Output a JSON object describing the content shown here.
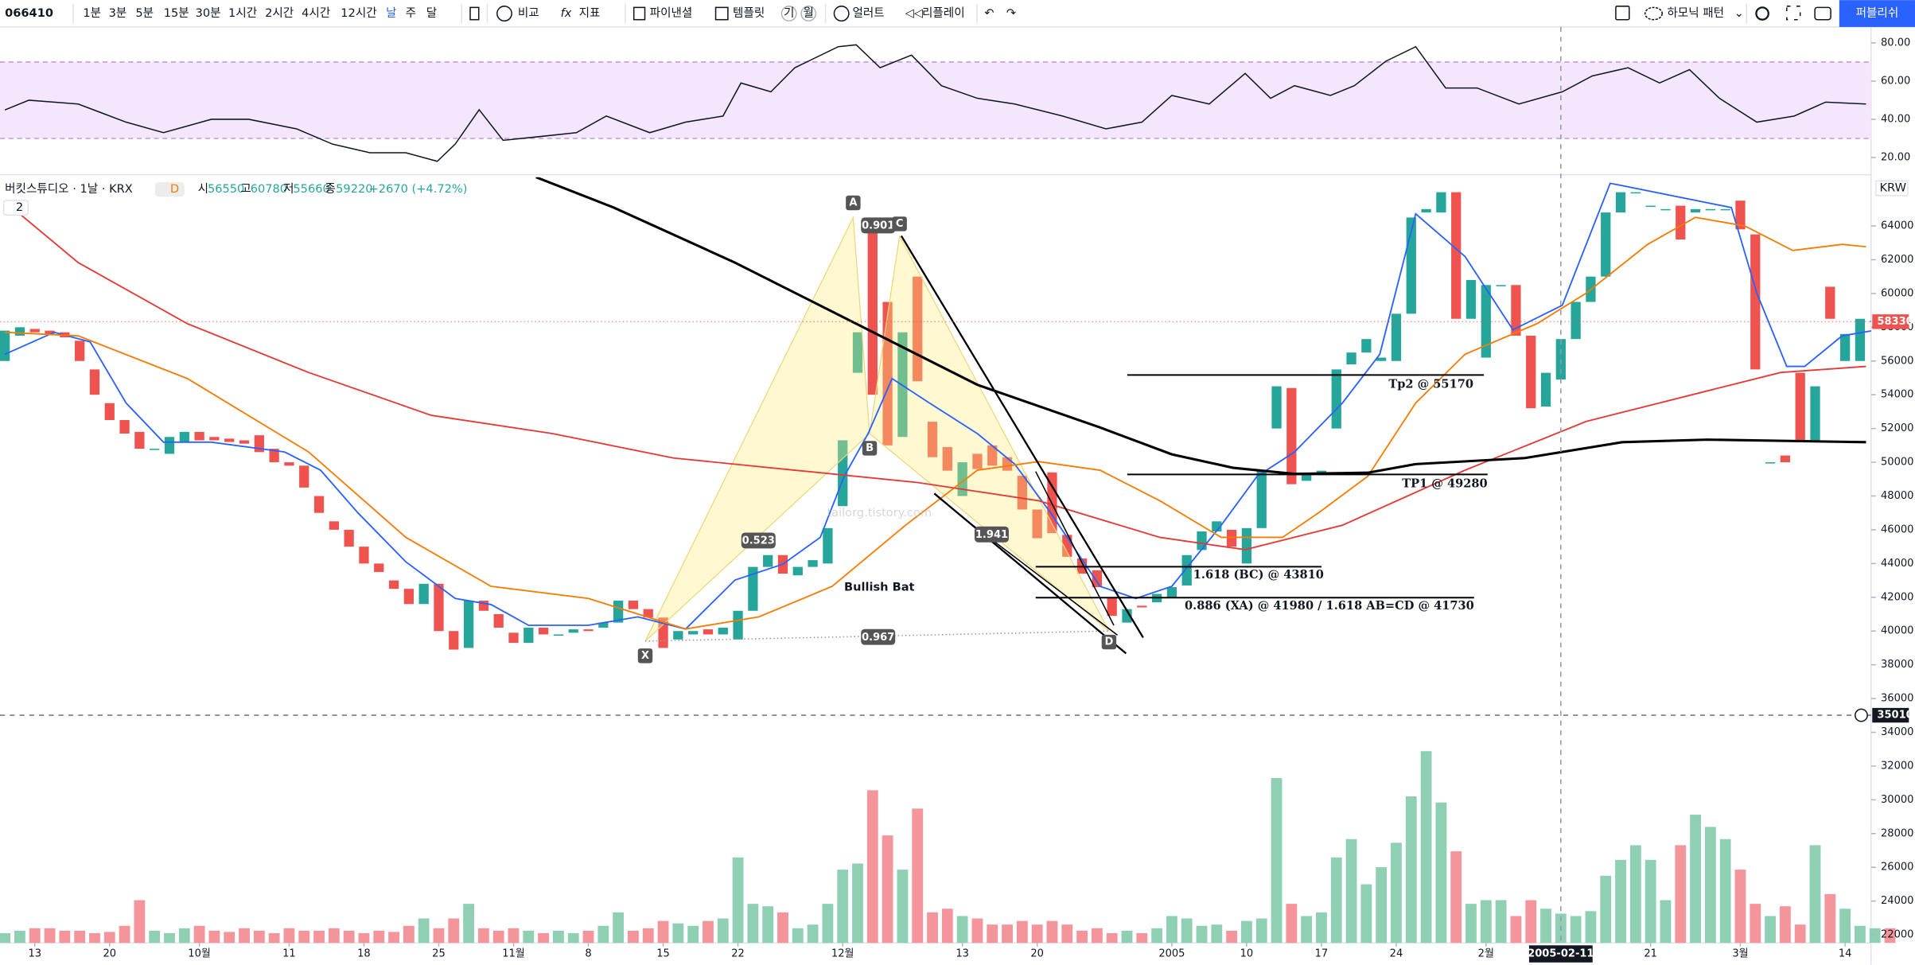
{
  "toolbar": {
    "symbol": "066410",
    "intervals": [
      "1분",
      "3분",
      "5분",
      "15분",
      "30분",
      "1시간",
      "2시간",
      "4시간",
      "12시간",
      "날",
      "주",
      "달"
    ],
    "compare": "비교",
    "indicators": "지표",
    "financials": "파이낸셜",
    "templates": "템플릿",
    "template_buttons": [
      "기",
      "월"
    ],
    "alert": "얼러트",
    "replay": "리플레이",
    "harmonic": "하모닉 패턴",
    "publish": "퍼블리쉬"
  },
  "legend": {
    "title": "버킷스튜디오 · 1날 · KRX",
    "badge": "D",
    "open_label": "시",
    "open": 56550,
    "high_label": "고",
    "high": 60780,
    "low_label": "저",
    "low": 55660,
    "close_label": "종",
    "close": 59220,
    "change": "+2670 (+4.72%)",
    "collapsed": "2",
    "currency": "KRW"
  },
  "chart": {
    "colors": {
      "up": "#26a69a",
      "down": "#ef5350",
      "vol_up": "#8fd0b5",
      "vol_down": "#f4959b"
    },
    "ylim": [
      20220,
      66890
    ],
    "yticks": [
      22000,
      24000,
      26000,
      28000,
      30000,
      32000,
      34000,
      36000,
      38000,
      40000,
      42000,
      44000,
      46000,
      48000,
      50000,
      52000,
      54000,
      56000,
      58000,
      60000,
      62000,
      64000
    ],
    "x_labels": [
      {
        "value": 2,
        "label": "13"
      },
      {
        "value": 7,
        "label": "20"
      },
      {
        "value": 13,
        "label": "10월"
      },
      {
        "value": 19,
        "label": "11"
      },
      {
        "value": 24,
        "label": "18"
      },
      {
        "value": 29,
        "label": "25"
      },
      {
        "value": 34,
        "label": "11월"
      },
      {
        "value": 39,
        "label": "8"
      },
      {
        "value": 44,
        "label": "15"
      },
      {
        "value": 49,
        "label": "22"
      },
      {
        "value": 56,
        "label": "12월"
      },
      {
        "value": 64,
        "label": "13"
      },
      {
        "value": 69,
        "label": "20"
      },
      {
        "value": 78,
        "label": "2005"
      },
      {
        "value": 83,
        "label": "10"
      },
      {
        "value": 88,
        "label": "17"
      },
      {
        "value": 93,
        "label": "24"
      },
      {
        "value": 99,
        "label": "2월"
      },
      {
        "value": 110,
        "label": "21"
      },
      {
        "value": 116,
        "label": "3월"
      },
      {
        "value": 123,
        "label": "14"
      }
    ],
    "candles": {
      "open": [
        56000,
        57500,
        57900,
        57800,
        57700,
        57200,
        55500,
        53500,
        52500,
        51800,
        50800,
        50500,
        51200,
        51800,
        51500,
        51400,
        51300,
        51600,
        50800,
        50000,
        49800,
        48000,
        46500,
        46000,
        45000,
        44000,
        43000,
        42500,
        41600,
        42800,
        40000,
        39000,
        41800,
        41000,
        39900,
        39300,
        40200,
        39800,
        39900,
        40100,
        40200,
        40500,
        41800,
        41300,
        40800,
        39500,
        39800,
        40100,
        39800,
        39500,
        41200,
        43800,
        44500,
        43300,
        43800,
        44000,
        47400,
        55300,
        64300,
        59500,
        51500,
        61000,
        52400,
        50900,
        48000,
        50500,
        51000,
        50300,
        49200,
        47200,
        49400,
        45700,
        44300,
        43600,
        42000,
        40500,
        41500,
        41700,
        42000,
        42700,
        44800,
        45900,
        46000,
        44000,
        46100,
        52000,
        54400,
        48900,
        49300,
        52000,
        55800,
        56500,
        56000,
        56000,
        58800,
        64800,
        64800,
        66000,
        58500,
        56200,
        60500,
        60500,
        57500,
        53300,
        54900,
        57300,
        59500,
        61000,
        64800,
        66000,
        65200,
        65000,
        65200,
        64800,
        65000,
        65000,
        65500,
        63500,
        50000,
        50400,
        55300,
        51200,
        60400,
        56000,
        56000,
        58300,
        58800
      ],
      "close": [
        57800,
        58000,
        57700,
        57600,
        57400,
        56000,
        54000,
        52500,
        51700,
        50800,
        50800,
        51500,
        51800,
        51300,
        51300,
        51200,
        51100,
        50600,
        50000,
        49800,
        48500,
        47000,
        46000,
        45000,
        44000,
        43500,
        42500,
        41600,
        42800,
        40000,
        38900,
        41800,
        41200,
        40200,
        39300,
        40200,
        39800,
        39800,
        40100,
        40000,
        40500,
        41800,
        41300,
        40800,
        39000,
        40000,
        40000,
        39800,
        40200,
        41200,
        43800,
        44500,
        43400,
        43800,
        44200,
        46100,
        51300,
        57700,
        54000,
        51000,
        57700,
        54800,
        50300,
        49500,
        50000,
        49600,
        49800,
        49500,
        47200,
        45500,
        45800,
        44400,
        43400,
        42600,
        40900,
        41300,
        41400,
        42200,
        42600,
        44500,
        45900,
        46500,
        45000,
        46100,
        49500,
        54500,
        48700,
        49300,
        49500,
        55500,
        56500,
        57300,
        56200,
        58800,
        64500,
        65000,
        66000,
        58500,
        60800,
        60500,
        60500,
        57500,
        53200,
        55300,
        57300,
        59500,
        61000,
        64800,
        66000,
        66000,
        65200,
        65000,
        63200,
        65000,
        65000,
        65000,
        63800,
        55500,
        50000,
        50000,
        51300,
        54500,
        58500,
        57600,
        58500,
        58400,
        58330
      ]
    },
    "volume": [
      8,
      10,
      12,
      12,
      10,
      10,
      8,
      9,
      14,
      35,
      10,
      8,
      12,
      14,
      10,
      9,
      12,
      10,
      8,
      12,
      10,
      10,
      12,
      10,
      8,
      10,
      9,
      14,
      20,
      12,
      20,
      32,
      12,
      10,
      12,
      10,
      8,
      10,
      8,
      10,
      14,
      25,
      10,
      12,
      18,
      16,
      14,
      18,
      20,
      70,
      32,
      30,
      25,
      12,
      15,
      32,
      60,
      65,
      125,
      88,
      60,
      110,
      25,
      28,
      22,
      20,
      15,
      15,
      18,
      15,
      18,
      15,
      10,
      12,
      8,
      10,
      8,
      12,
      22,
      20,
      14,
      15,
      10,
      18,
      20,
      135,
      32,
      22,
      25,
      70,
      85,
      48,
      62,
      82,
      120,
      157,
      115,
      75,
      32,
      35,
      35,
      22,
      35,
      28,
      24,
      22,
      26,
      55,
      68,
      80,
      68,
      35,
      80,
      105,
      95,
      85,
      60,
      32,
      22,
      30,
      15,
      80,
      40,
      28,
      14,
      12,
      12
    ],
    "ma": [
      {
        "color": "#2962ff",
        "x": [
          0,
          3.3,
          5.7,
          8.1,
          10.6,
          13.8,
          18.7,
          21.1,
          23.6,
          26.8,
          30.1,
          32.5,
          35,
          39,
          42.3,
          45.5,
          48.8,
          52,
          54.5,
          56.1,
          57.7,
          59.3,
          61.8,
          65,
          67.5,
          69.9,
          73.2,
          75.6,
          78,
          81.3,
          83.7,
          86.2,
          89.4,
          91.9,
          94.3,
          97.6,
          100.8,
          104.1,
          107.3,
          115.4,
          117.1,
          119.1,
          120.3,
          122.8,
          125.2
        ],
        "values": [
          56400,
          57700,
          57130,
          53510,
          51190,
          51190,
          50610,
          49530,
          47000,
          44100,
          41930,
          41570,
          40340,
          40340,
          40840,
          40120,
          43020,
          43960,
          45550,
          49170,
          51700,
          54960,
          53510,
          51700,
          49890,
          47000,
          42650,
          41930,
          42650,
          46270,
          49170,
          50610,
          53510,
          56400,
          64720,
          62190,
          57850,
          59300,
          66530,
          65090,
          60020,
          55680,
          55680,
          57490,
          57850
        ]
      },
      {
        "color": "#f57c00",
        "x": [
          0,
          4.9,
          12.2,
          20.3,
          26.8,
          32.5,
          39,
          45.5,
          50.4,
          55.3,
          60.2,
          65,
          69.1,
          73.2,
          77.2,
          81.3,
          85.4,
          87.8,
          91.1,
          94.3,
          97.6,
          102.4,
          105.7,
          109.8,
          113,
          116.3,
          119.5,
          122.8,
          124.4
        ],
        "values": [
          57700,
          57490,
          54960,
          50610,
          45550,
          42650,
          41930,
          40120,
          40840,
          42650,
          46270,
          49530,
          50040,
          49530,
          47720,
          45550,
          45550,
          47000,
          49170,
          53510,
          56400,
          58210,
          60020,
          62910,
          64510,
          64000,
          62550,
          62910,
          62770
        ]
      },
      {
        "color": "#e53935",
        "x": [
          0,
          4.9,
          12.2,
          20.3,
          28.5,
          36.6,
          44.7,
          52.8,
          61,
          69.1,
          77.2,
          82.9,
          89.4,
          97.6,
          105.7,
          113.8,
          118.7,
          124.4
        ],
        "values": [
          65450,
          61830,
          58210,
          55320,
          52780,
          51700,
          50250,
          49530,
          48800,
          47720,
          45550,
          44820,
          46270,
          49530,
          52420,
          54230,
          55320,
          55680
        ]
      },
      {
        "color": "#000000",
        "x": [
          35.5,
          40.7,
          48.8,
          56.9,
          65,
          73.2,
          78,
          82.1,
          86.2,
          91.1,
          94.3,
          101.6,
          108.1,
          113.8,
          124.4
        ],
        "values": [
          66890,
          65090,
          61830,
          58210,
          54590,
          52060,
          50470,
          49670,
          49310,
          49380,
          49890,
          50250,
          51190,
          51340,
          51190
        ]
      }
    ],
    "rsi": {
      "color": "#131722",
      "ylim": [
        11.6,
        84.5
      ],
      "band": [
        30,
        70
      ],
      "yticks": [
        {
          "value": 20,
          "label": "20.00"
        },
        {
          "value": 40,
          "label": "40.00"
        },
        {
          "value": 60,
          "label": "60.00"
        },
        {
          "value": 80,
          "label": "80.00"
        }
      ],
      "x": [
        0,
        1.6,
        4.9,
        8.1,
        10.6,
        13.8,
        16.3,
        19.5,
        21.9,
        24.4,
        26.8,
        28.9,
        30.1,
        31.7,
        33.3,
        35.8,
        38.2,
        40.2,
        43.1,
        45.5,
        48,
        49.2,
        51.2,
        52.8,
        55.7,
        56.9,
        58.5,
        60.6,
        62.6,
        65,
        67.5,
        70.7,
        73.6,
        76,
        78,
        80.5,
        82.9,
        84.6,
        86.2,
        88.6,
        90.2,
        92.3,
        94.3,
        96.3,
        98.4,
        101.2,
        104.1,
        106.1,
        108.5,
        110.6,
        112.6,
        114.6,
        117.1,
        119.6,
        121.7,
        124.4
      ],
      "values": [
        44.9,
        50,
        48,
        38.5,
        33,
        40,
        40,
        35,
        27,
        22.5,
        22.5,
        18,
        27,
        45,
        29,
        31,
        33,
        41.7,
        33,
        38.5,
        41.7,
        59,
        54.4,
        67,
        78,
        79,
        67,
        73.6,
        57.6,
        51,
        48,
        41.7,
        35,
        38.5,
        52.5,
        48,
        64,
        51,
        57.6,
        52.5,
        57.6,
        70.4,
        78,
        56.4,
        56.4,
        48,
        54.4,
        62.7,
        67,
        59,
        66,
        51,
        38.5,
        41.7,
        49,
        48
      ]
    },
    "pattern": {
      "name": "Bullish Bat",
      "watermark": "tailorg.tistory.com",
      "points": [
        {
          "label": "X",
          "x": 42.8,
          "price": 39400
        },
        {
          "label": "A",
          "x": 56.7,
          "price": 64500
        },
        {
          "label": "B",
          "x": 57.8,
          "price": 51700
        },
        {
          "label": "C",
          "x": 59.8,
          "price": 63400
        },
        {
          "label": "D",
          "x": 73.8,
          "price": 40000
        }
      ],
      "ratios": [
        "0.523",
        "0.901",
        "0.967",
        "1.941"
      ]
    },
    "targets": [
      {
        "label": "Tp2 @ 55170",
        "price": 55170
      },
      {
        "label": "TP1 @ 49280",
        "price": 49280
      },
      {
        "label": "1.618 (BC) @ 43810",
        "price": 43810
      },
      {
        "label": "0.886 (XA) @ 41980 / 1.618 AB=CD @ 41730",
        "price": 41980
      }
    ],
    "last_price": 58330,
    "crosshair": {
      "price": 35010,
      "x": 104,
      "date": "2005-02-11"
    }
  }
}
